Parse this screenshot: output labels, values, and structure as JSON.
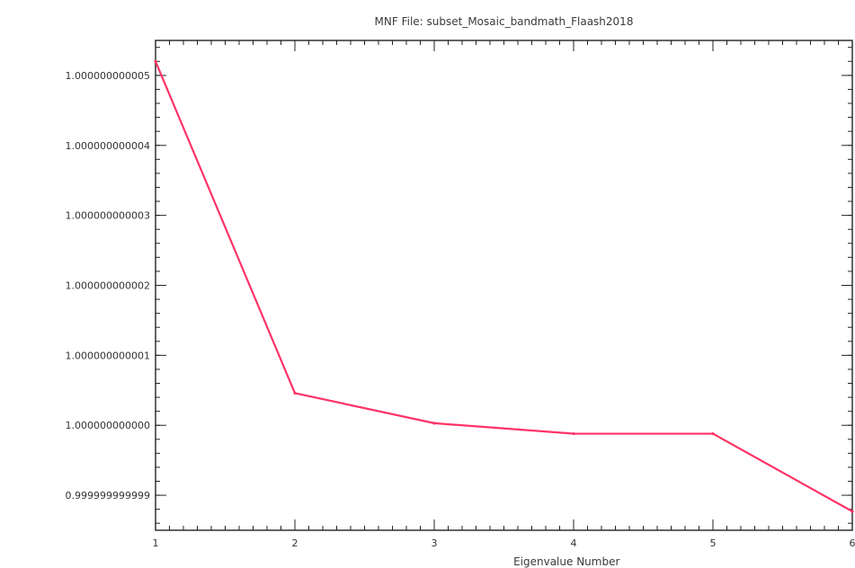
{
  "chart_data": {
    "type": "line",
    "title": "MNF File: subset_Mosaic_bandmath_Flaash2018",
    "xlabel": "Eigenvalue Number",
    "ylabel": "",
    "xlim": [
      1,
      6
    ],
    "ylim": [
      0.9999999999985,
      1.0000000000055
    ],
    "x_ticks": [
      1,
      2,
      3,
      4,
      5,
      6
    ],
    "x_tick_labels": [
      "1",
      "2",
      "3",
      "4",
      "5",
      "6"
    ],
    "y_ticks": [
      0.999999999999,
      1.0,
      1.000000000001,
      1.000000000002,
      1.000000000003,
      1.000000000004,
      1.000000000005
    ],
    "y_tick_labels": [
      "0.999999999999",
      "1.000000000000",
      "1.000000000001",
      "1.000000000002",
      "1.000000000003",
      "1.000000000004",
      "1.000000000005"
    ],
    "grid": false,
    "series": [
      {
        "x": [
          1,
          2,
          3,
          4,
          5,
          6
        ],
        "y": [
          1.0000000000052,
          1.00000000000046,
          1.00000000000003,
          0.99999999999988,
          0.99999999999988,
          0.99999999999877
        ],
        "color": "#ff3366"
      }
    ]
  }
}
